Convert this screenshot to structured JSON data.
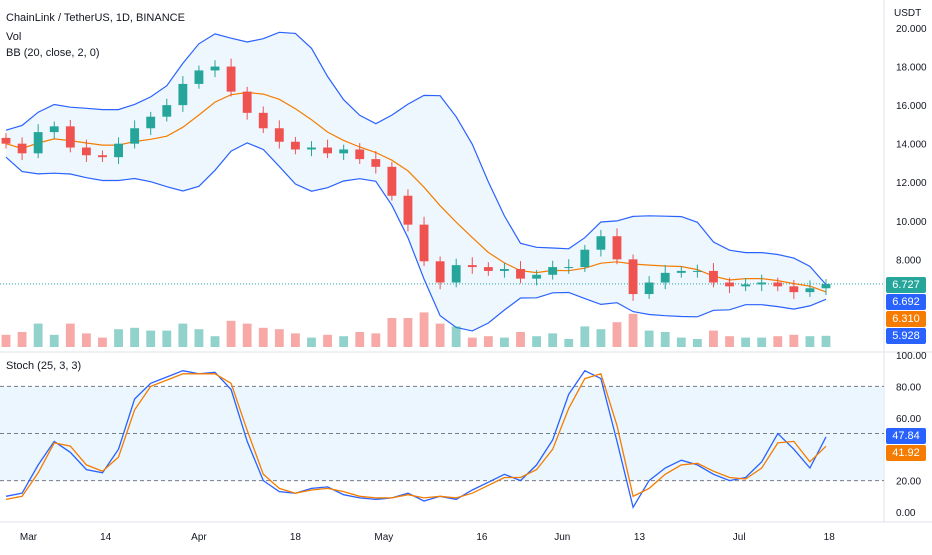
{
  "legend": {
    "symbol": "ChainLink / TetherUS, 1D, BINANCE",
    "vol": "Vol",
    "bb": "BB (20, close, 2, 0)",
    "stoch": "Stoch (25, 3, 3)"
  },
  "currency": "USDT",
  "price_axis": [
    "20.000",
    "18.000",
    "16.000",
    "14.000",
    "12.000",
    "10.000",
    "8.000"
  ],
  "stoch_axis": [
    "100.00",
    "80.00",
    "60.00",
    "40.00",
    "20.00",
    "0.00"
  ],
  "time_axis": [
    "Mar",
    "14",
    "Apr",
    "18",
    "May",
    "16",
    "Jun",
    "13",
    "Jul",
    "18"
  ],
  "badges": [
    {
      "value": "6.727",
      "color": "#26a69a"
    },
    {
      "value": "6.692",
      "color": "#2962ff"
    },
    {
      "value": "6.310",
      "color": "#f57c00"
    },
    {
      "value": "5.928",
      "color": "#2962ff"
    },
    {
      "value": "47.84",
      "color": "#2962ff"
    },
    {
      "value": "41.92",
      "color": "#f57c00"
    }
  ],
  "colors": {
    "up": "#26a69a",
    "down": "#ef5350",
    "bb_band": "#2962ff",
    "bb_basis": "#f57c00",
    "stoch_k": "#2962ff",
    "stoch_d": "#f57c00"
  },
  "chart_data": [
    {
      "type": "candlestick",
      "title": "ChainLink / TetherUS, 1D, BINANCE",
      "x_range": [
        "Feb 20",
        "Jul 18"
      ],
      "ylim": [
        6,
        20
      ],
      "close_series": [
        {
          "date": "Feb 20",
          "close": 14.0
        },
        {
          "date": "Feb 25",
          "close": 13.5
        },
        {
          "date": "Mar 1",
          "close": 14.6
        },
        {
          "date": "Mar 5",
          "close": 14.9
        },
        {
          "date": "Mar 8",
          "close": 13.8
        },
        {
          "date": "Mar 11",
          "close": 13.4
        },
        {
          "date": "Mar 14",
          "close": 13.3
        },
        {
          "date": "Mar 17",
          "close": 14.0
        },
        {
          "date": "Mar 20",
          "close": 14.8
        },
        {
          "date": "Mar 23",
          "close": 15.4
        },
        {
          "date": "Mar 26",
          "close": 16.0
        },
        {
          "date": "Mar 29",
          "close": 17.1
        },
        {
          "date": "Apr 1",
          "close": 17.8
        },
        {
          "date": "Apr 4",
          "close": 18.0
        },
        {
          "date": "Apr 6",
          "close": 16.7
        },
        {
          "date": "Apr 9",
          "close": 15.6
        },
        {
          "date": "Apr 12",
          "close": 14.8
        },
        {
          "date": "Apr 15",
          "close": 14.1
        },
        {
          "date": "Apr 18",
          "close": 13.7
        },
        {
          "date": "Apr 21",
          "close": 13.8
        },
        {
          "date": "Apr 24",
          "close": 13.5
        },
        {
          "date": "Apr 27",
          "close": 13.7
        },
        {
          "date": "Apr 30",
          "close": 13.2
        },
        {
          "date": "May 3",
          "close": 12.8
        },
        {
          "date": "May 6",
          "close": 11.3
        },
        {
          "date": "May 9",
          "close": 9.8
        },
        {
          "date": "May 11",
          "close": 7.9
        },
        {
          "date": "May 12",
          "close": 6.8
        },
        {
          "date": "May 14",
          "close": 7.7
        },
        {
          "date": "May 17",
          "close": 7.6
        },
        {
          "date": "May 20",
          "close": 7.4
        },
        {
          "date": "May 23",
          "close": 7.5
        },
        {
          "date": "May 26",
          "close": 7.0
        },
        {
          "date": "May 29",
          "close": 7.2
        },
        {
          "date": "Jun 1",
          "close": 7.6
        },
        {
          "date": "Jun 4",
          "close": 7.6
        },
        {
          "date": "Jun 7",
          "close": 8.5
        },
        {
          "date": "Jun 9",
          "close": 9.2
        },
        {
          "date": "Jun 11",
          "close": 8.0
        },
        {
          "date": "Jun 13",
          "close": 6.2
        },
        {
          "date": "Jun 16",
          "close": 6.8
        },
        {
          "date": "Jun 19",
          "close": 7.3
        },
        {
          "date": "Jun 22",
          "close": 7.4
        },
        {
          "date": "Jun 25",
          "close": 7.4
        },
        {
          "date": "Jun 28",
          "close": 6.8
        },
        {
          "date": "Jul 1",
          "close": 6.6
        },
        {
          "date": "Jul 4",
          "close": 6.7
        },
        {
          "date": "Jul 7",
          "close": 6.8
        },
        {
          "date": "Jul 10",
          "close": 6.6
        },
        {
          "date": "Jul 13",
          "close": 6.3
        },
        {
          "date": "Jul 16",
          "close": 6.5
        },
        {
          "date": "Jul 18",
          "close": 6.727
        }
      ],
      "last": {
        "close": 6.727,
        "bb_upper": 6.692,
        "bb_basis": 6.31,
        "bb_lower": 5.928
      }
    },
    {
      "type": "line",
      "title": "Stoch (25, 3, 3)",
      "ylim": [
        0,
        100
      ],
      "x": [
        "Feb 20",
        "Feb 25",
        "Mar 1",
        "Mar 5",
        "Mar 8",
        "Mar 11",
        "Mar 14",
        "Mar 17",
        "Mar 20",
        "Mar 23",
        "Mar 26",
        "Mar 29",
        "Apr 1",
        "Apr 4",
        "Apr 6",
        "Apr 9",
        "Apr 12",
        "Apr 15",
        "Apr 18",
        "Apr 21",
        "Apr 24",
        "Apr 27",
        "Apr 30",
        "May 3",
        "May 6",
        "May 9",
        "May 11",
        "May 12",
        "May 14",
        "May 17",
        "May 20",
        "May 23",
        "May 26",
        "May 29",
        "Jun 1",
        "Jun 4",
        "Jun 7",
        "Jun 9",
        "Jun 11",
        "Jun 13",
        "Jun 16",
        "Jun 19",
        "Jun 22",
        "Jun 25",
        "Jun 28",
        "Jul 1",
        "Jul 4",
        "Jul 7",
        "Jul 10",
        "Jul 13",
        "Jul 16",
        "Jul 18"
      ],
      "series": [
        {
          "name": "%K",
          "values": [
            10,
            12,
            30,
            45,
            38,
            27,
            25,
            40,
            72,
            82,
            86,
            90,
            88,
            89,
            78,
            45,
            20,
            13,
            12,
            15,
            16,
            11,
            9,
            8,
            9,
            12,
            7,
            10,
            8,
            14,
            19,
            24,
            20,
            30,
            46,
            75,
            90,
            85,
            45,
            3,
            20,
            28,
            33,
            30,
            24,
            20,
            22,
            32,
            50,
            40,
            28,
            47.84
          ]
        },
        {
          "name": "%D",
          "values": [
            8,
            10,
            25,
            44,
            42,
            30,
            26,
            35,
            65,
            80,
            84,
            88,
            88,
            88,
            82,
            52,
            24,
            15,
            12,
            14,
            15,
            13,
            10,
            9,
            9,
            11,
            9,
            10,
            9,
            12,
            17,
            22,
            22,
            27,
            40,
            66,
            85,
            88,
            55,
            10,
            15,
            24,
            30,
            31,
            26,
            22,
            21,
            28,
            44,
            45,
            32,
            41.92
          ]
        }
      ],
      "levels": [
        80,
        50,
        20
      ]
    }
  ]
}
